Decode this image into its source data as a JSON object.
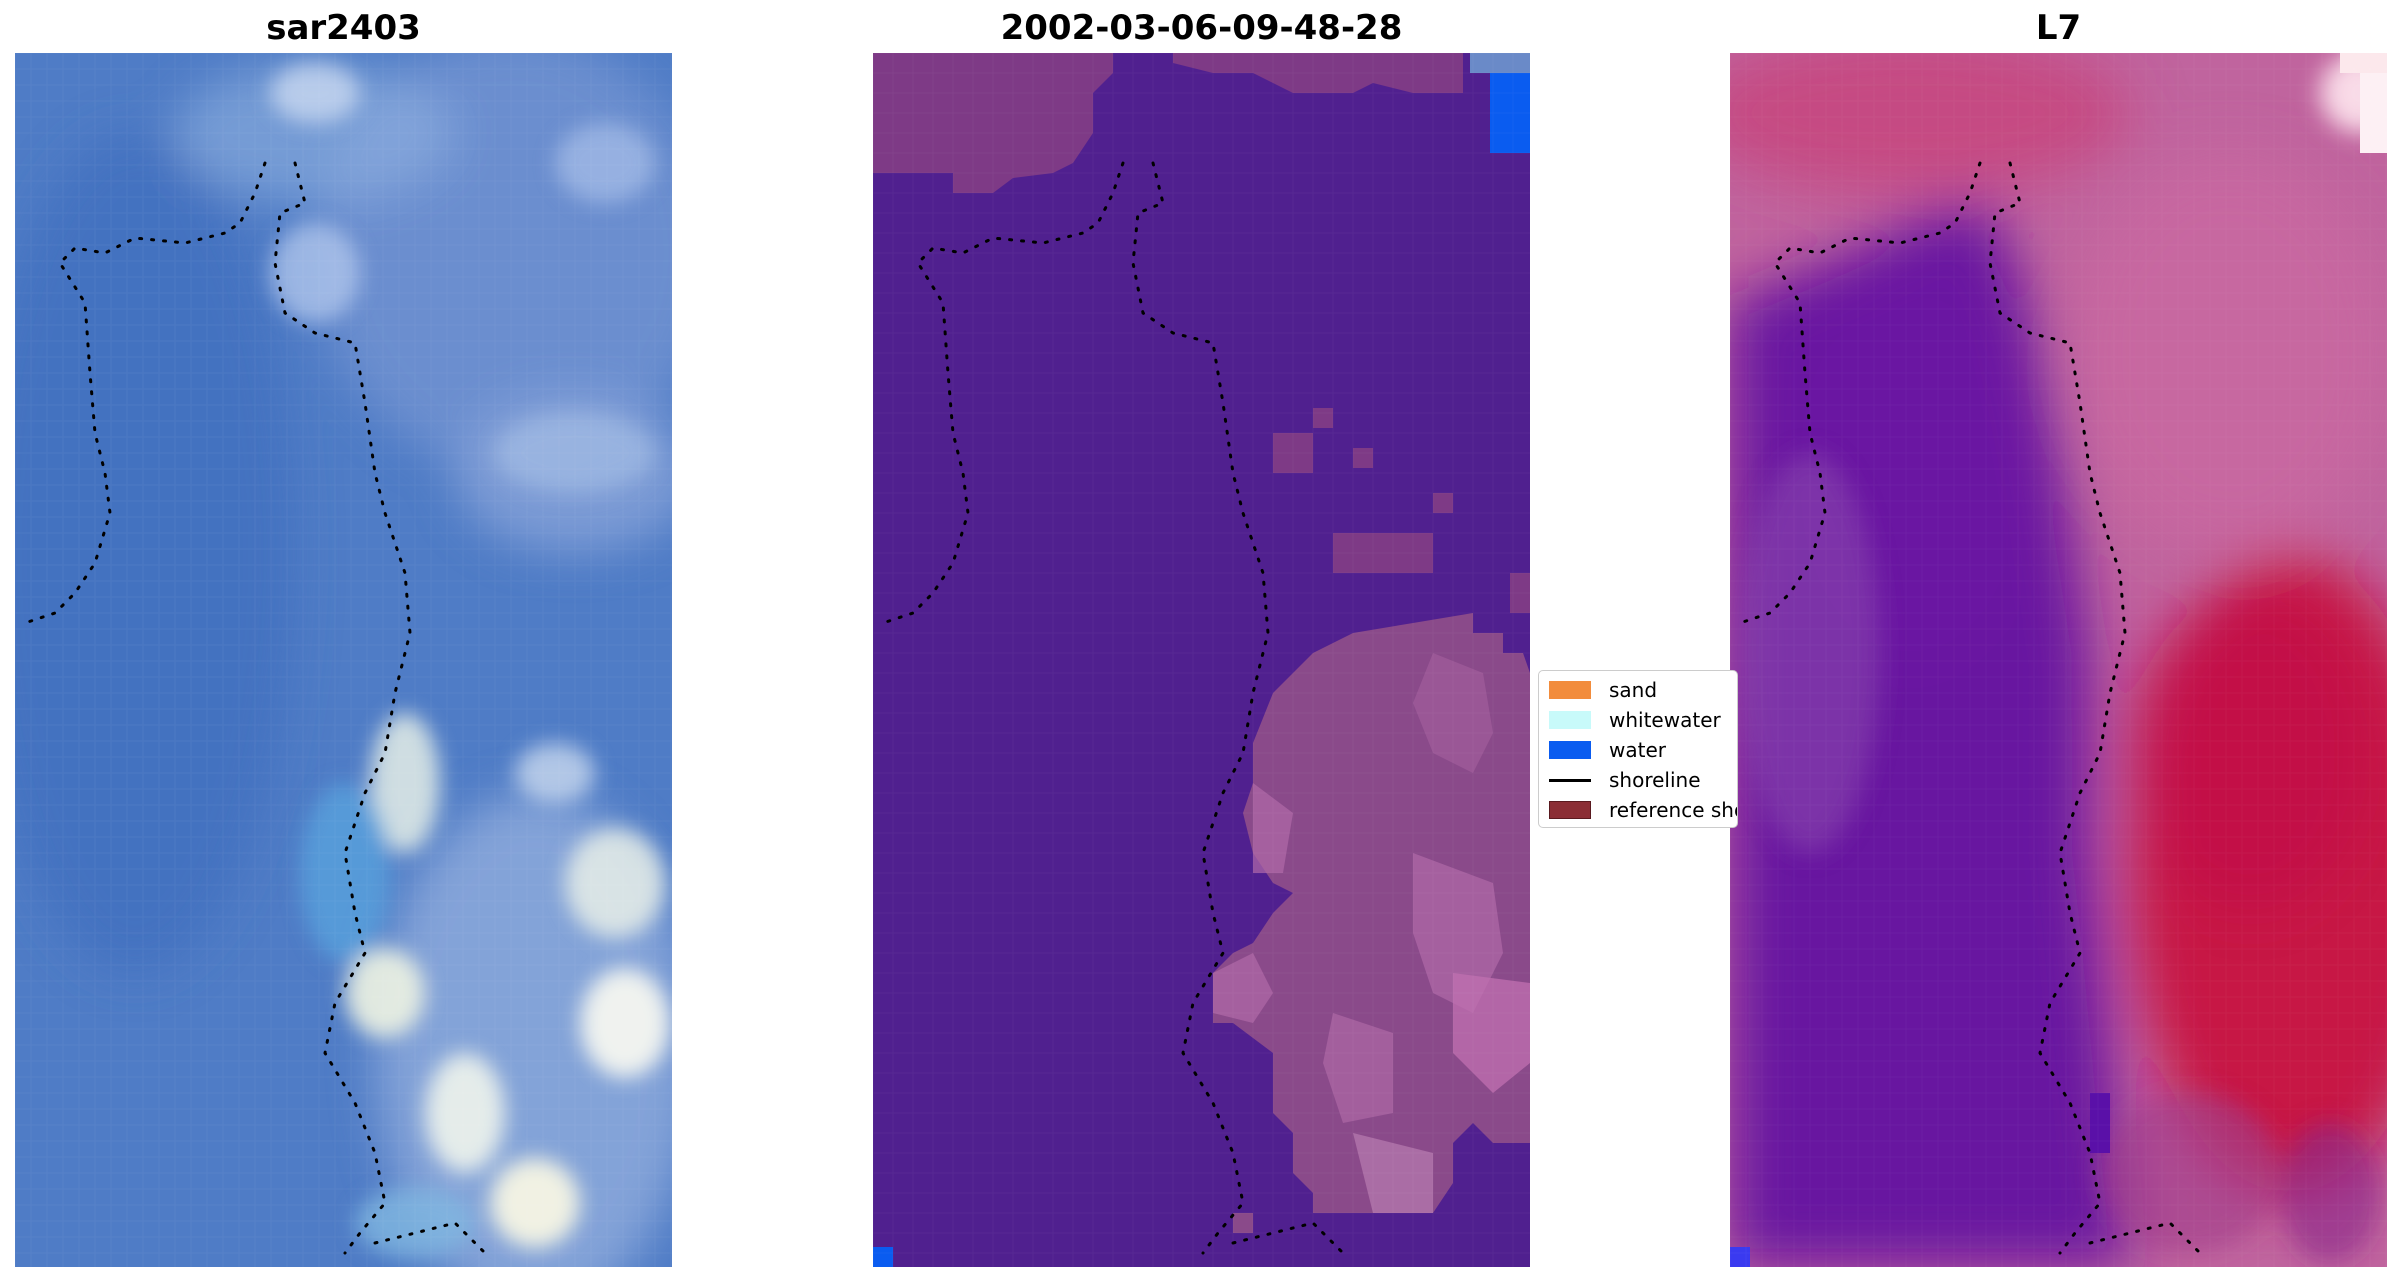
{
  "panels": [
    {
      "title": "sar2403"
    },
    {
      "title": "2002-03-06-09-48-28"
    },
    {
      "title": "L7"
    }
  ],
  "legend": {
    "items": [
      {
        "label": "sand",
        "color": "#f28c3c",
        "kind": "patch"
      },
      {
        "label": "whitewater",
        "color": "#c8fafa",
        "kind": "patch"
      },
      {
        "label": "water",
        "color": "#0a5cf0",
        "kind": "patch"
      },
      {
        "label": "shoreline",
        "color": "#000000",
        "kind": "line"
      },
      {
        "label": "reference shoreline",
        "color": "#8b2e35",
        "kind": "patch"
      }
    ]
  },
  "colors": {
    "rgb_water": "#4a7cc8",
    "rgb_light": "#a9c4e6",
    "class_background": "#50208f",
    "class_overlay": "#8a4a8a",
    "class_overlay_light": "#b06aa8",
    "water_pixel": "#0a5cf0",
    "ndwi_purple": "#6818a0",
    "ndwi_pink": "#c8609a",
    "ndwi_red": "#c8083a"
  }
}
